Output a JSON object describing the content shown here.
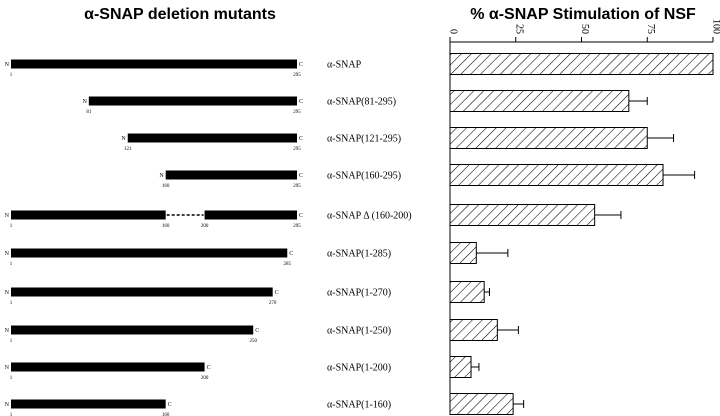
{
  "left_title": "α-SNAP deletion mutants",
  "right_title": "% α-SNAP Stimulation of NSF",
  "chart_data": {
    "type": "bar",
    "orientation": "horizontal",
    "title": "% α-SNAP Stimulation of NSF",
    "xlim": [
      0,
      100
    ],
    "xticks": [
      "0",
      "25",
      "50",
      "75",
      "100"
    ],
    "grid": false,
    "pattern": "diagonal-hatch",
    "categories": [
      "α-SNAP",
      "α-SNAP(81-295)",
      "α-SNAP(121-295)",
      "α-SNAP(160-295)",
      "α-SNAP Δ (160-200)",
      "α-SNAP(1-285)",
      "α-SNAP(1-270)",
      "α-SNAP(1-250)",
      "α-SNAP(1-200)",
      "α-SNAP(1-160)"
    ],
    "values": [
      100,
      68,
      75,
      81,
      55,
      10,
      13,
      18,
      8,
      24
    ],
    "errors": [
      0,
      7,
      10,
      12,
      10,
      12,
      2,
      8,
      3,
      4
    ]
  },
  "constructs": [
    {
      "segments": [
        [
          1,
          295
        ]
      ],
      "start_label": "1",
      "end_label": "295",
      "n": "N",
      "c": "C"
    },
    {
      "segments": [
        [
          81,
          295
        ]
      ],
      "start_label": "81",
      "end_label": "295",
      "n": "N",
      "c": "C"
    },
    {
      "segments": [
        [
          121,
          295
        ]
      ],
      "start_label": "121",
      "end_label": "295",
      "n": "N",
      "c": "C"
    },
    {
      "segments": [
        [
          160,
          295
        ]
      ],
      "start_label": "160",
      "end_label": "295",
      "n": "N",
      "c": "C"
    },
    {
      "segments": [
        [
          1,
          160
        ],
        [
          200,
          295
        ]
      ],
      "start_label": "1",
      "end_label": "295",
      "gap_labels": [
        "160",
        "200"
      ],
      "n": "N",
      "c": "C"
    },
    {
      "segments": [
        [
          1,
          285
        ]
      ],
      "start_label": "1",
      "end_label": "285",
      "n": "N",
      "c": "C"
    },
    {
      "segments": [
        [
          1,
          270
        ]
      ],
      "start_label": "1",
      "end_label": "270",
      "n": "N",
      "c": "C"
    },
    {
      "segments": [
        [
          1,
          250
        ]
      ],
      "start_label": "1",
      "end_label": "250",
      "n": "N",
      "c": "C"
    },
    {
      "segments": [
        [
          1,
          200
        ]
      ],
      "start_label": "1",
      "end_label": "200",
      "n": "N",
      "c": "C"
    },
    {
      "segments": [
        [
          1,
          160
        ]
      ],
      "start_label": "1",
      "end_label": "160",
      "n": "N",
      "c": "C"
    }
  ]
}
